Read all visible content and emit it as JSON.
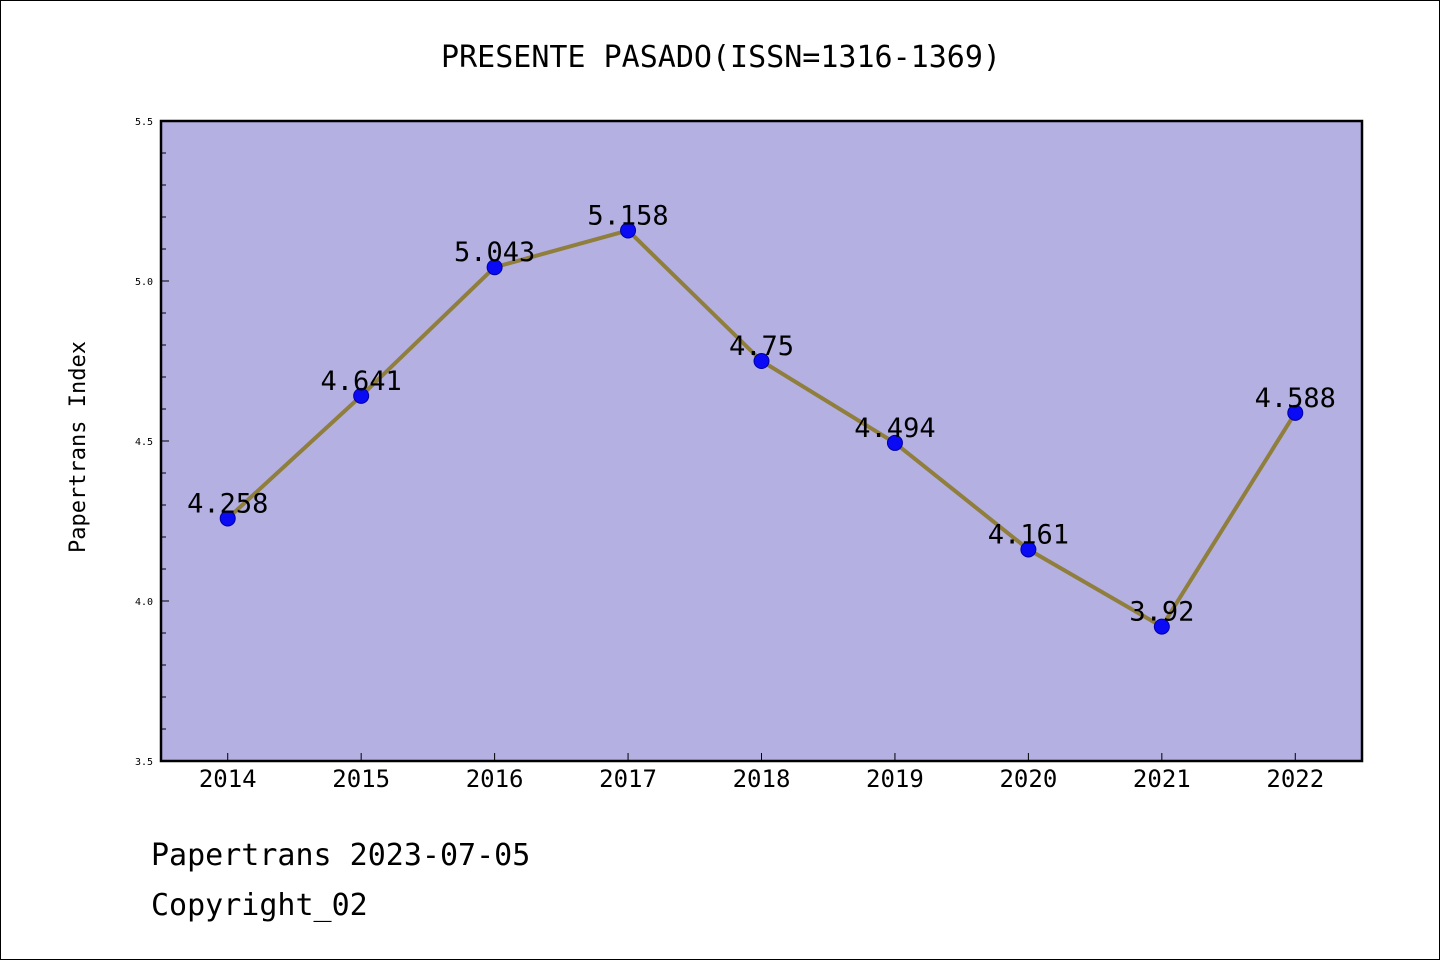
{
  "chart_data": {
    "type": "line",
    "title": "PRESENTE PASADO(ISSN=1316-1369)",
    "xlabel": "",
    "ylabel": "Papertrans Index",
    "categories": [
      "2014",
      "2015",
      "2016",
      "2017",
      "2018",
      "2019",
      "2020",
      "2021",
      "2022"
    ],
    "values": [
      4.258,
      4.641,
      5.043,
      5.158,
      4.75,
      4.494,
      4.161,
      3.92,
      4.588
    ],
    "value_labels": [
      "4.258",
      "4.641",
      "5.043",
      "5.158",
      "4.75",
      "4.494",
      "4.161",
      "3.92",
      "4.588"
    ],
    "ylim": [
      3.5,
      5.5
    ],
    "yticks": [
      "3.5",
      "4.0",
      "4.5",
      "5.0",
      "5.5"
    ],
    "grid": false,
    "colors": {
      "plot_background": "#b4b0e2",
      "line": "#8f7e3c",
      "marker": "#0a0af5"
    }
  },
  "footer": {
    "line1": "Papertrans 2023-07-05",
    "line2": "Copyright_02"
  }
}
